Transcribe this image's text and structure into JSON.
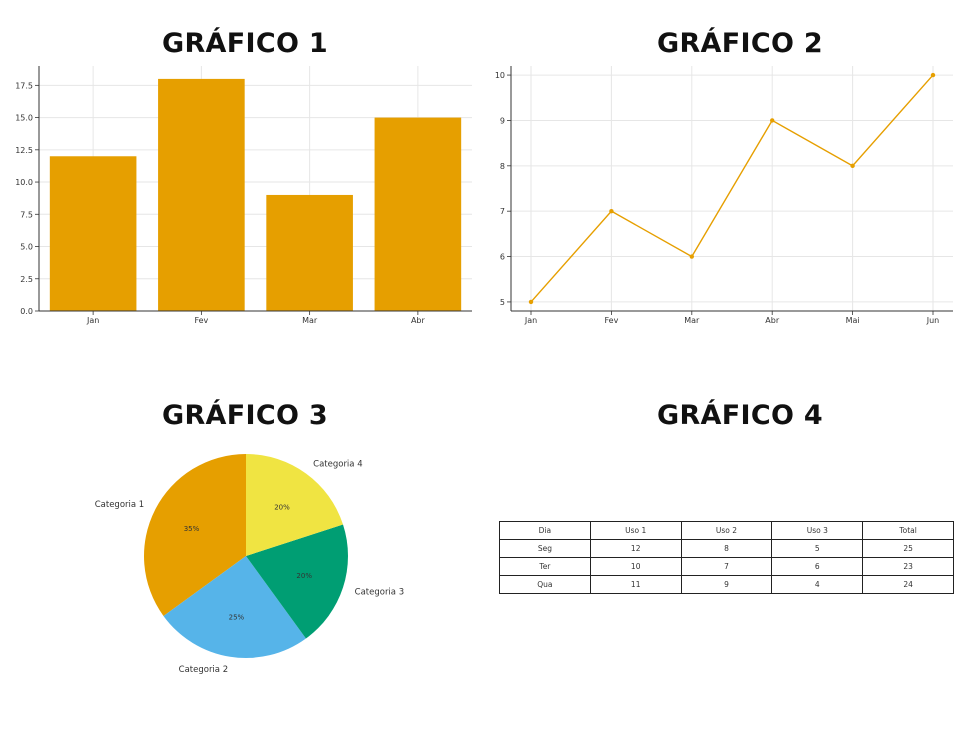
{
  "titles": [
    "GRÁFICO 1",
    "GRÁFICO 2",
    "GRÁFICO 3",
    "GRÁFICO 4"
  ],
  "chart_data": [
    {
      "type": "bar",
      "title": "GRÁFICO 1",
      "categories": [
        "Jan",
        "Fev",
        "Mar",
        "Abr"
      ],
      "values": [
        12,
        18,
        9,
        15
      ],
      "color": "#E69F00",
      "ylim": [
        0,
        19
      ],
      "yticks": [
        "0.0",
        "2.5",
        "5.0",
        "7.5",
        "10.0",
        "12.5",
        "15.0",
        "17.5"
      ],
      "grid": true
    },
    {
      "type": "line",
      "title": "GRÁFICO 2",
      "categories": [
        "Jan",
        "Fev",
        "Mar",
        "Abr",
        "Mai",
        "Jun"
      ],
      "values": [
        5,
        7,
        6,
        9,
        8,
        10
      ],
      "color": "#E69F00",
      "ylim": [
        4.8,
        10.2
      ],
      "yticks": [
        "5",
        "6",
        "7",
        "8",
        "9",
        "10"
      ],
      "grid": true
    },
    {
      "type": "pie",
      "title": "GRÁFICO 3",
      "slices": [
        {
          "label": "Categoria 1",
          "value": 35,
          "pct_label": "35%",
          "color": "#E69F00"
        },
        {
          "label": "Categoria 2",
          "value": 25,
          "pct_label": "25%",
          "color": "#56B4E9"
        },
        {
          "label": "Categoria 3",
          "value": 20,
          "pct_label": "20%",
          "color": "#009E73"
        },
        {
          "label": "Categoria 4",
          "value": 20,
          "pct_label": "20%",
          "color": "#F0E442"
        }
      ]
    },
    {
      "type": "table",
      "title": "GRÁFICO 4",
      "columns": [
        "Dia",
        "Uso 1",
        "Uso 2",
        "Uso 3",
        "Total"
      ],
      "rows": [
        [
          "Seg",
          "12",
          "8",
          "5",
          "25"
        ],
        [
          "Ter",
          "10",
          "7",
          "6",
          "23"
        ],
        [
          "Qua",
          "11",
          "9",
          "4",
          "24"
        ]
      ]
    }
  ]
}
